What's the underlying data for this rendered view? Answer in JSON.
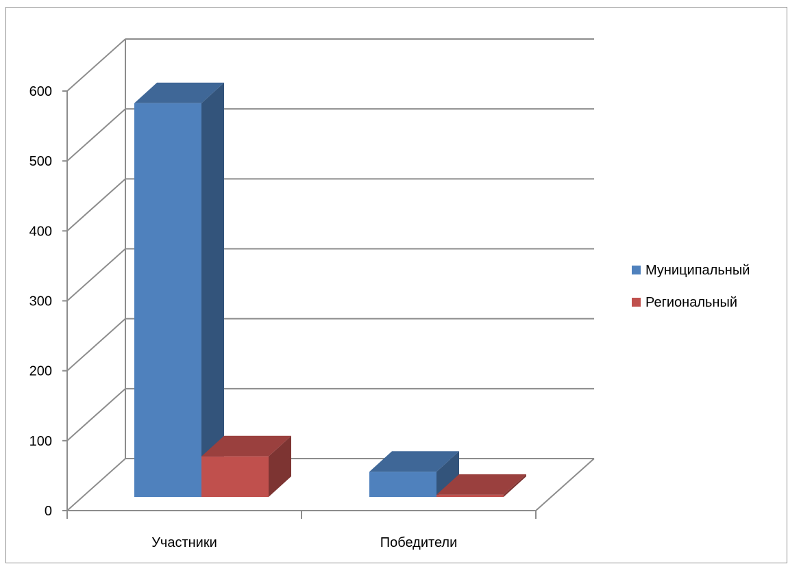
{
  "chart_data": {
    "type": "bar",
    "categories": [
      "Участники",
      "Победители"
    ],
    "series": [
      {
        "name": "Муниципальный",
        "color": "#4f81bd",
        "values": [
          563,
          36
        ]
      },
      {
        "name": "Региональный",
        "color": "#c0504d",
        "values": [
          58,
          3
        ]
      }
    ],
    "ylim": [
      0,
      600
    ],
    "yticks": [
      "0",
      "100",
      "200",
      "300",
      "400",
      "500",
      "600"
    ],
    "grid": true,
    "legend": "right",
    "style": "3d-clustered-column"
  }
}
